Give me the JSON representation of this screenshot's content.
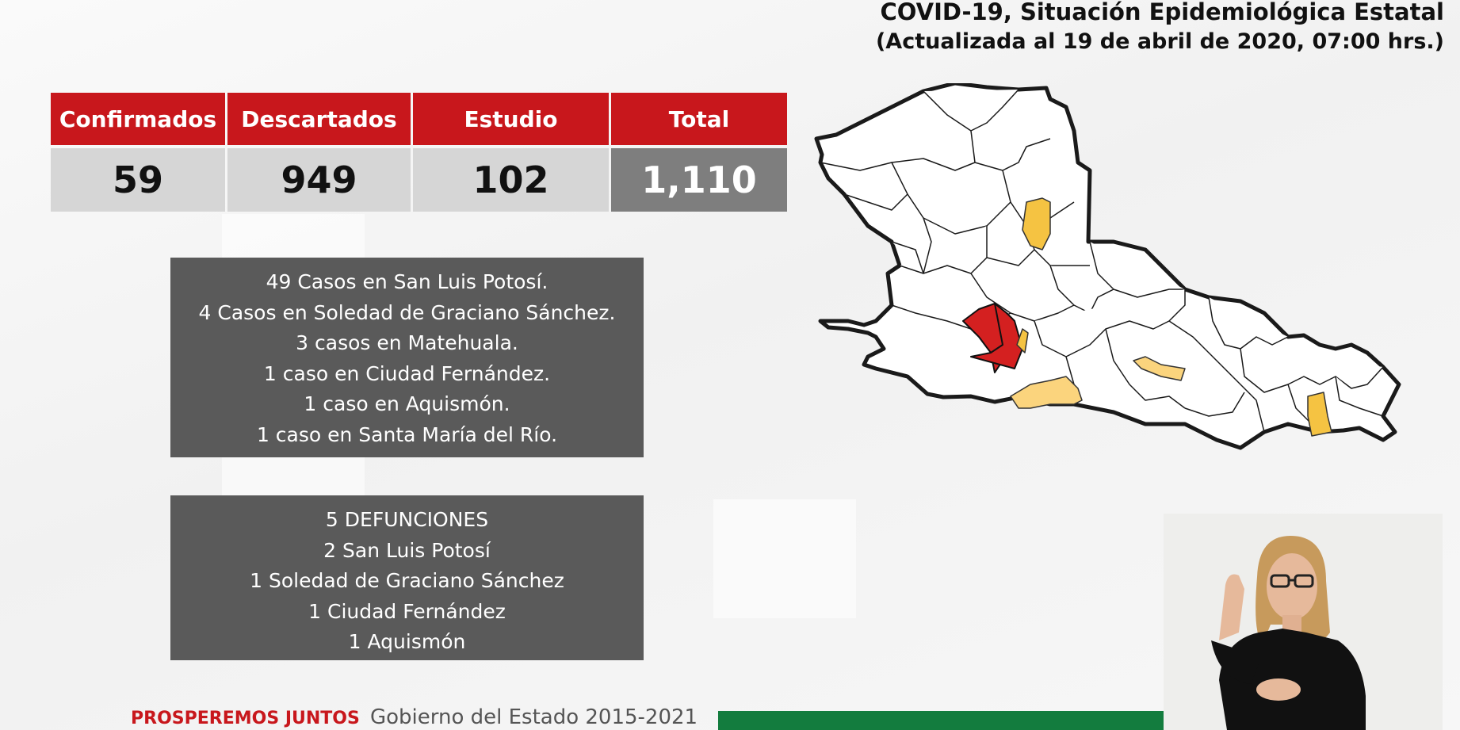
{
  "header": {
    "title_line1": "COVID-19, Situación Epidemiológica Estatal",
    "title_line2": "(Actualizada al 19 de abril de 2020, 07:00 hrs.)"
  },
  "stats": {
    "headers": [
      "Confirmados",
      "Descartados",
      "Estudio",
      "Total"
    ],
    "values": [
      "59",
      "949",
      "102",
      "1,110"
    ]
  },
  "cases": {
    "lines": [
      "49 Casos en San Luis Potosí.",
      "4 Casos en Soledad de Graciano Sánchez.",
      "3 casos en Matehuala.",
      "1 caso en Ciudad Fernández.",
      "1 caso en Aquismón.",
      "1 caso en Santa María del Río."
    ]
  },
  "deaths": {
    "lines": [
      "5 DEFUNCIONES",
      "2 San Luis Potosí",
      "1 Soledad de Graciano Sánchez",
      "1 Ciudad Fernández",
      "1 Aquismón"
    ]
  },
  "footer": {
    "slogan": "PROSPEREMOS JUNTOS",
    "government": "Gobierno del Estado 2015-2021"
  },
  "colors": {
    "header_red": "#c8171c",
    "cell_gray": "#d6d6d6",
    "total_gray": "#7e7e7e",
    "box_gray": "#5a5a5a",
    "map_red": "#d42020",
    "map_yellow": "#f5c342",
    "map_light_yellow": "#fbd47d",
    "footer_green": "#137c3e"
  },
  "icons": {
    "interpreter": "sign-language-interpreter-video"
  }
}
